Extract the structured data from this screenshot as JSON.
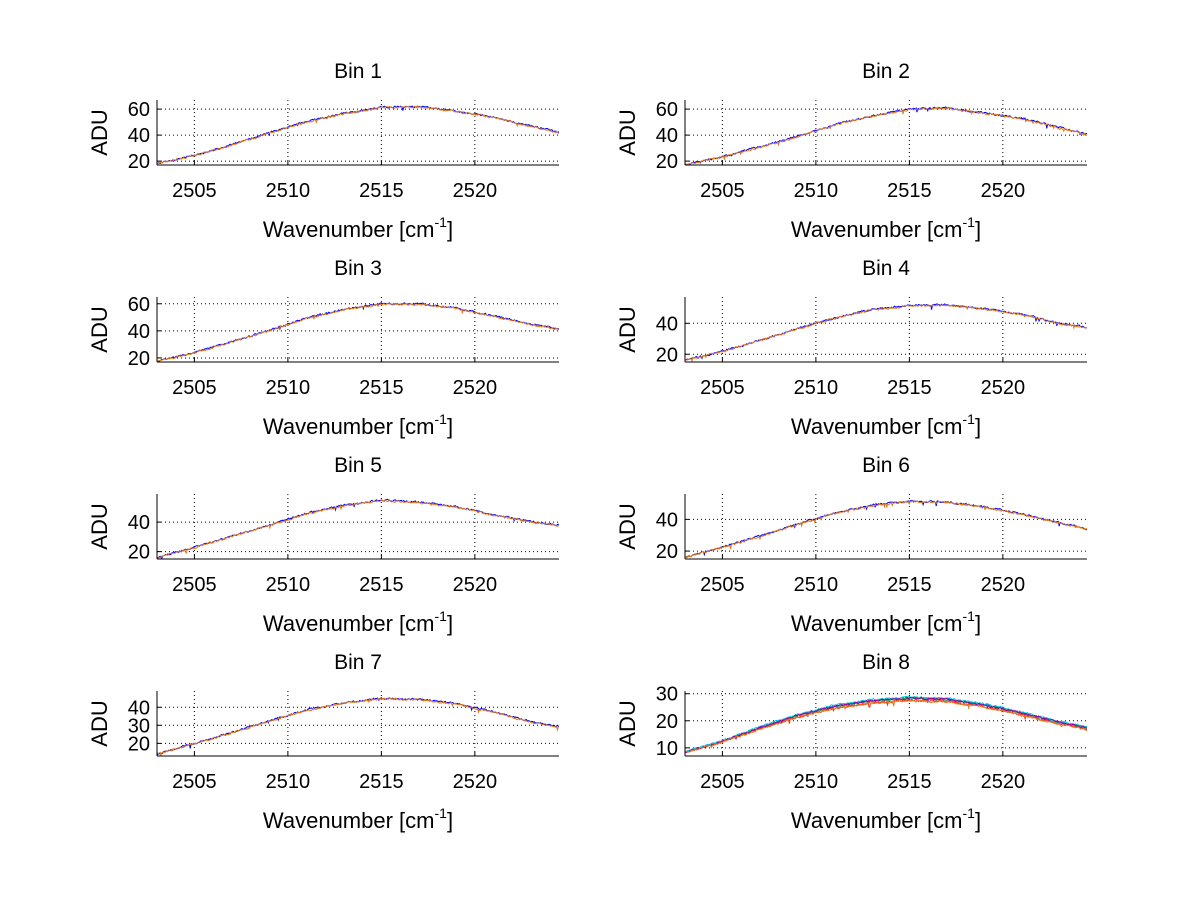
{
  "figure": {
    "series_colors": [
      "#0000ff",
      "#1fb35a",
      "#ff2a00",
      "#00c8d6",
      "#a000a0",
      "#e07a1f"
    ]
  },
  "chart_data": [
    {
      "type": "line",
      "title": "Bin 1",
      "ylabel": "ADU",
      "xlabel": {
        "prefix": "Wavenumber [cm",
        "sup": "-1",
        "suffix": "]"
      },
      "xlim": [
        2503,
        2524.5
      ],
      "ylim": [
        17,
        67
      ],
      "xticks": [
        2505,
        2510,
        2515,
        2520
      ],
      "yticks": [
        20,
        40,
        60
      ],
      "grid": true,
      "x": [
        2503,
        2505,
        2507,
        2509,
        2511,
        2513,
        2515,
        2517,
        2519,
        2521,
        2523,
        2524.5
      ],
      "series": [
        {
          "values": [
            18,
            24.5,
            32.5,
            42,
            50.5,
            56.5,
            61.5,
            62,
            58.5,
            54,
            47,
            42
          ]
        },
        {
          "values": [
            18,
            24.2,
            32.2,
            41.6,
            50.1,
            56.2,
            61.2,
            61.7,
            58.2,
            53.6,
            46.6,
            41.6
          ]
        }
      ]
    },
    {
      "type": "line",
      "title": "Bin 2",
      "ylabel": "ADU",
      "xlabel": {
        "prefix": "Wavenumber [cm",
        "sup": "-1",
        "suffix": "]"
      },
      "xlim": [
        2503,
        2524.5
      ],
      "ylim": [
        17,
        67
      ],
      "xticks": [
        2505,
        2510,
        2515,
        2520
      ],
      "yticks": [
        20,
        40,
        60
      ],
      "grid": true,
      "x": [
        2503,
        2505,
        2507,
        2509,
        2511,
        2513,
        2515,
        2517,
        2519,
        2521,
        2523,
        2524.5
      ],
      "series": [
        {
          "values": [
            17,
            23.5,
            31,
            39,
            48,
            55,
            60,
            61,
            57,
            53,
            46,
            40.5
          ]
        },
        {
          "values": [
            17,
            23.2,
            30.7,
            38.7,
            47.6,
            54.6,
            59.6,
            60.6,
            56.6,
            52.6,
            45.6,
            40.1
          ]
        }
      ]
    },
    {
      "type": "line",
      "title": "Bin 3",
      "ylabel": "ADU",
      "xlabel": {
        "prefix": "Wavenumber [cm",
        "sup": "-1",
        "suffix": "]"
      },
      "xlim": [
        2503,
        2524.5
      ],
      "ylim": [
        17,
        65
      ],
      "xticks": [
        2505,
        2510,
        2515,
        2520
      ],
      "yticks": [
        20,
        40,
        60
      ],
      "grid": true,
      "x": [
        2503,
        2505,
        2507,
        2509,
        2511,
        2513,
        2515,
        2517,
        2519,
        2521,
        2523,
        2524.5
      ],
      "series": [
        {
          "values": [
            17.5,
            24,
            32,
            40.5,
            49.5,
            56,
            60,
            60,
            57,
            51,
            45,
            41.5
          ]
        },
        {
          "values": [
            17.5,
            23.7,
            31.7,
            40.2,
            49.1,
            55.6,
            59.6,
            59.6,
            56.6,
            50.6,
            44.6,
            41.1
          ]
        }
      ]
    },
    {
      "type": "line",
      "title": "Bin 4",
      "ylabel": "ADU",
      "xlabel": {
        "prefix": "Wavenumber [cm",
        "sup": "-1",
        "suffix": "]"
      },
      "xlim": [
        2503,
        2524.5
      ],
      "ylim": [
        15,
        57
      ],
      "xticks": [
        2505,
        2510,
        2515,
        2520
      ],
      "yticks": [
        20,
        40
      ],
      "grid": true,
      "x": [
        2503,
        2505,
        2507,
        2509,
        2511,
        2513,
        2515,
        2517,
        2519,
        2521,
        2523,
        2524.5
      ],
      "series": [
        {
          "values": [
            16,
            22,
            29,
            36.5,
            43.5,
            49,
            51.5,
            52,
            49.5,
            46,
            40,
            37.5
          ]
        },
        {
          "values": [
            16,
            21.8,
            28.7,
            36.2,
            43.2,
            48.7,
            51.2,
            51.7,
            49.2,
            45.7,
            39.7,
            37.2
          ]
        }
      ]
    },
    {
      "type": "line",
      "title": "Bin 5",
      "ylabel": "ADU",
      "xlabel": {
        "prefix": "Wavenumber [cm",
        "sup": "-1",
        "suffix": "]"
      },
      "xlim": [
        2503,
        2524.5
      ],
      "ylim": [
        15,
        59
      ],
      "xticks": [
        2505,
        2510,
        2515,
        2520
      ],
      "yticks": [
        20,
        40
      ],
      "grid": true,
      "x": [
        2503,
        2505,
        2507,
        2509,
        2511,
        2513,
        2515,
        2517,
        2519,
        2521,
        2523,
        2524.5
      ],
      "series": [
        {
          "values": [
            16,
            23,
            30.5,
            38,
            46,
            51.5,
            55,
            53.5,
            50.5,
            45,
            40.5,
            38
          ]
        },
        {
          "values": [
            16,
            22.7,
            30.2,
            37.7,
            45.6,
            51.1,
            54.6,
            53.1,
            50.1,
            44.6,
            40.1,
            37.6
          ]
        }
      ]
    },
    {
      "type": "line",
      "title": "Bin 6",
      "ylabel": "ADU",
      "xlabel": {
        "prefix": "Wavenumber [cm",
        "sup": "-1",
        "suffix": "]"
      },
      "xlim": [
        2503,
        2524.5
      ],
      "ylim": [
        15,
        56
      ],
      "xticks": [
        2505,
        2510,
        2515,
        2520
      ],
      "yticks": [
        20,
        40
      ],
      "grid": true,
      "x": [
        2503,
        2505,
        2507,
        2509,
        2511,
        2513,
        2515,
        2517,
        2519,
        2521,
        2523,
        2524.5
      ],
      "series": [
        {
          "values": [
            16,
            22.5,
            29.5,
            37,
            44,
            49,
            51.5,
            51,
            48,
            43.5,
            38,
            34
          ]
        },
        {
          "values": [
            16,
            22.2,
            29.2,
            36.7,
            43.7,
            48.7,
            51.2,
            50.7,
            47.7,
            43.2,
            37.7,
            33.7
          ]
        }
      ]
    },
    {
      "type": "line",
      "title": "Bin 7",
      "ylabel": "ADU",
      "xlabel": {
        "prefix": "Wavenumber [cm",
        "sup": "-1",
        "suffix": "]"
      },
      "xlim": [
        2503,
        2524.5
      ],
      "ylim": [
        13,
        49
      ],
      "xticks": [
        2505,
        2510,
        2515,
        2520
      ],
      "yticks": [
        20,
        30,
        40
      ],
      "grid": true,
      "x": [
        2503,
        2505,
        2507,
        2509,
        2511,
        2513,
        2515,
        2517,
        2519,
        2521,
        2523,
        2524.5
      ],
      "series": [
        {
          "values": [
            14,
            20,
            26,
            32.5,
            38.5,
            42.5,
            45,
            44.5,
            42,
            37.5,
            32,
            29
          ]
        },
        {
          "values": [
            14,
            19.8,
            25.8,
            32.2,
            38.2,
            42.2,
            44.7,
            44.2,
            41.7,
            37.2,
            31.7,
            28.7
          ]
        }
      ]
    },
    {
      "type": "line",
      "title": "Bin 8",
      "ylabel": "ADU",
      "xlabel": {
        "prefix": "Wavenumber [cm",
        "sup": "-1",
        "suffix": "]"
      },
      "xlim": [
        2503,
        2524.5
      ],
      "ylim": [
        7,
        31
      ],
      "xticks": [
        2505,
        2510,
        2515,
        2520
      ],
      "yticks": [
        10,
        20,
        30
      ],
      "grid": true,
      "x": [
        2503,
        2505,
        2507,
        2509,
        2511,
        2513,
        2515,
        2517,
        2519,
        2521,
        2523,
        2524.5
      ],
      "series": [
        {
          "values": [
            8.5,
            12.5,
            17.5,
            22,
            25.5,
            27.5,
            28.5,
            28,
            26,
            23,
            19.5,
            17.5
          ]
        },
        {
          "values": [
            8.4,
            12.4,
            17.3,
            21.8,
            25.2,
            27.2,
            28.2,
            27.7,
            25.8,
            22.8,
            19.3,
            17.3
          ]
        },
        {
          "values": [
            8.3,
            12.2,
            17,
            21.3,
            24.6,
            26.6,
            27.6,
            27.1,
            25.2,
            22.3,
            18.9,
            16.9
          ]
        },
        {
          "values": [
            8.6,
            12.7,
            17.7,
            22.3,
            25.8,
            27.9,
            28.9,
            28.3,
            26.3,
            23.3,
            19.8,
            17.8
          ]
        },
        {
          "values": [
            8.5,
            12.4,
            17.4,
            21.9,
            25.4,
            27.4,
            28.4,
            27.9,
            25.9,
            22.9,
            19.4,
            17.4
          ]
        },
        {
          "values": [
            8.3,
            12.1,
            16.9,
            21.2,
            24.5,
            26.5,
            27.4,
            26.9,
            25.0,
            22.1,
            18.7,
            16.8
          ]
        }
      ]
    }
  ]
}
